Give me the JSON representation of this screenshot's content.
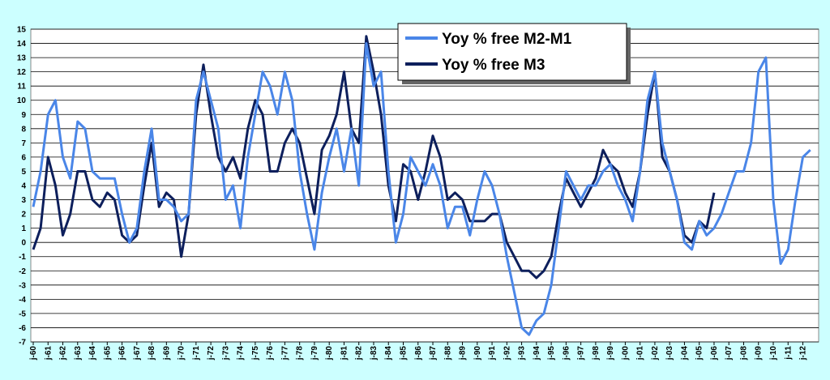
{
  "chart_data": {
    "type": "line",
    "categories": [
      "j-60",
      null,
      "j-61",
      null,
      "j-62",
      null,
      "j-63",
      null,
      "j-64",
      null,
      "j-65",
      null,
      "j-66",
      null,
      "j-67",
      null,
      "j-68",
      null,
      "j-69",
      null,
      "j-70",
      null,
      "j-71",
      null,
      "j-72",
      null,
      "j-73",
      null,
      "j-74",
      null,
      "j-75",
      null,
      "j-76",
      null,
      "j-77",
      null,
      "j-78",
      null,
      "j-79",
      null,
      "j-80",
      null,
      "j-81",
      null,
      "j-82",
      null,
      "j-83",
      null,
      "j-84",
      null,
      "j-85",
      null,
      "j-86",
      null,
      "j-87",
      null,
      "j-88",
      null,
      "j-89",
      null,
      "j-90",
      null,
      "j-91",
      null,
      "j-92",
      null,
      "j-93",
      null,
      "j-94",
      null,
      "j-95",
      null,
      "j-96",
      null,
      "j-97",
      null,
      "j-98",
      null,
      "j-99",
      null,
      "j-00",
      null,
      "j-01",
      null,
      "j-02",
      null,
      "j-03",
      null,
      "j-04",
      null,
      "j-05",
      null,
      "j-06",
      null,
      "j-07",
      null,
      "j-08",
      null,
      "j-09",
      null,
      "j-10",
      null,
      "j-11",
      null,
      "j-12",
      null
    ],
    "series": [
      {
        "name": "Yoy % free M2-M1",
        "color": "#4a86e8",
        "values": [
          2.5,
          5,
          9,
          10,
          6,
          4.5,
          8.5,
          8,
          5,
          4.5,
          4.5,
          4.5,
          2,
          0,
          1,
          5,
          8,
          3,
          3,
          2.5,
          1.5,
          2,
          10,
          12,
          10,
          8,
          3,
          4,
          1,
          6,
          9,
          12,
          11,
          9,
          12,
          10,
          5,
          2,
          -0.5,
          3.5,
          6,
          8,
          5,
          8,
          4,
          14,
          11,
          12,
          5,
          0,
          2,
          6,
          5,
          4,
          5.5,
          4,
          1,
          2.5,
          2.5,
          0.5,
          3,
          5,
          4,
          2,
          -1,
          -3.5,
          -6,
          -6.5,
          -5.5,
          -5,
          -3,
          1,
          5,
          4,
          3,
          4,
          4,
          5,
          5.5,
          4,
          3,
          1.5,
          5,
          10,
          12,
          7,
          5,
          3,
          0,
          -0.5,
          1.5,
          0.5,
          1,
          2,
          3.5,
          5,
          5,
          7,
          12,
          13,
          3,
          -1.5,
          -0.5,
          3,
          6,
          6.5
        ]
      },
      {
        "name": "Yoy % free M3",
        "color": "#0d1f5c",
        "values": [
          -0.5,
          1,
          6,
          4,
          0.5,
          2,
          5,
          5,
          3,
          2.5,
          3.5,
          3,
          0.5,
          0,
          0.5,
          4,
          7,
          2.5,
          3.5,
          3,
          -1,
          2,
          9,
          12.5,
          9,
          6,
          5,
          6,
          4.5,
          8,
          10,
          9,
          5,
          5,
          7,
          8,
          7,
          4.5,
          2,
          6.5,
          7.5,
          9,
          12,
          8,
          7,
          14.5,
          12,
          9,
          4,
          1.5,
          5.5,
          5,
          3,
          5,
          7.5,
          6,
          3,
          3.5,
          3,
          1.5,
          1.5,
          1.5,
          2,
          2,
          0,
          -1,
          -2,
          -2,
          -2.5,
          -2,
          -1,
          2,
          4.5,
          3.5,
          2.5,
          3.5,
          4.5,
          6.5,
          5.5,
          5,
          3.5,
          2.5,
          5,
          9,
          12,
          6,
          5,
          3,
          0.5,
          0,
          1.5,
          1,
          3.5,
          null,
          null,
          null,
          null,
          null,
          null,
          null,
          null,
          null,
          null,
          null,
          null,
          null
        ]
      }
    ],
    "ylim": [
      -7,
      15
    ],
    "yticks": [
      -7,
      -6,
      -5,
      -4,
      -3,
      -2,
      -1,
      0,
      1,
      2,
      3,
      4,
      5,
      6,
      7,
      8,
      9,
      10,
      11,
      12,
      13,
      14,
      15
    ],
    "grid": true,
    "legend": "top"
  }
}
